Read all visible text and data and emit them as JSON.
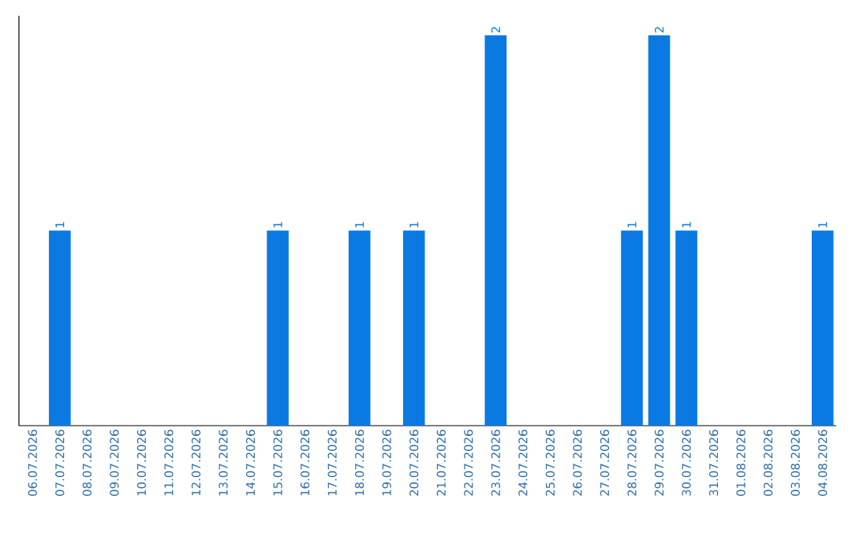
{
  "chart_data": {
    "type": "bar",
    "categories": [
      "06.07.2026",
      "07.07.2026",
      "08.07.2026",
      "09.07.2026",
      "10.07.2026",
      "11.07.2026",
      "12.07.2026",
      "13.07.2026",
      "14.07.2026",
      "15.07.2026",
      "16.07.2026",
      "17.07.2026",
      "18.07.2026",
      "19.07.2026",
      "20.07.2026",
      "21.07.2026",
      "22.07.2026",
      "23.07.2026",
      "24.07.2026",
      "25.07.2026",
      "26.07.2026",
      "27.07.2026",
      "28.07.2026",
      "29.07.2026",
      "30.07.2026",
      "31.07.2026",
      "01.08.2026",
      "02.08.2026",
      "03.08.2026",
      "04.08.2026"
    ],
    "values": [
      0,
      1,
      0,
      0,
      0,
      0,
      0,
      0,
      0,
      1,
      0,
      0,
      1,
      0,
      1,
      0,
      0,
      2,
      0,
      0,
      0,
      0,
      1,
      2,
      1,
      0,
      0,
      0,
      0,
      1
    ],
    "value_labels": [
      null,
      "1",
      null,
      null,
      null,
      null,
      null,
      null,
      null,
      "1",
      null,
      null,
      "1",
      null,
      "1",
      null,
      null,
      "2",
      null,
      null,
      null,
      null,
      "1",
      "2",
      "1",
      null,
      null,
      null,
      null,
      "1"
    ],
    "color": "#0a7ae2"
  }
}
